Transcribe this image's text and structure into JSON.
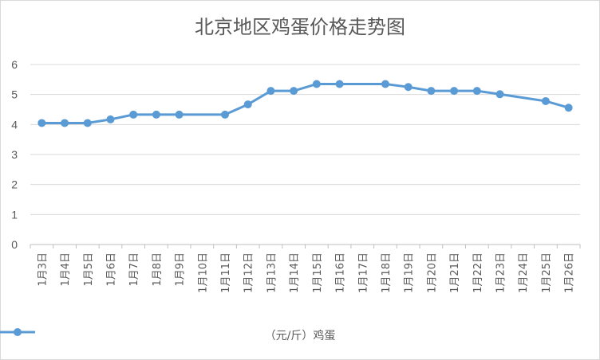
{
  "chart_data": {
    "type": "line",
    "title": "北京地区鸡蛋价格走势图",
    "xlabel": "",
    "ylabel": "",
    "ylim": [
      0,
      6
    ],
    "yticks": [
      0,
      1,
      2,
      3,
      4,
      5,
      6
    ],
    "grid": true,
    "legend_position": "bottom",
    "categories": [
      "1月3日",
      "1月4日",
      "1月5日",
      "1月6日",
      "1月7日",
      "1月8日",
      "1月9日",
      "1月10日",
      "1月11日",
      "1月12日",
      "1月13日",
      "1月14日",
      "1月15日",
      "1月16日",
      "1月17日",
      "1月18日",
      "1月19日",
      "1月20日",
      "1月21日",
      "1月22日",
      "1月23日",
      "1月24日",
      "1月25日",
      "1月26日"
    ],
    "series": [
      {
        "name": "（元/斤）鸡蛋",
        "color": "#5b9bd5",
        "values": [
          4.05,
          4.05,
          4.05,
          4.17,
          4.33,
          4.33,
          4.33,
          null,
          4.33,
          4.67,
          5.12,
          5.12,
          5.35,
          5.35,
          null,
          5.35,
          5.25,
          5.12,
          5.12,
          5.12,
          5.01,
          null,
          4.78,
          4.56
        ]
      }
    ]
  }
}
